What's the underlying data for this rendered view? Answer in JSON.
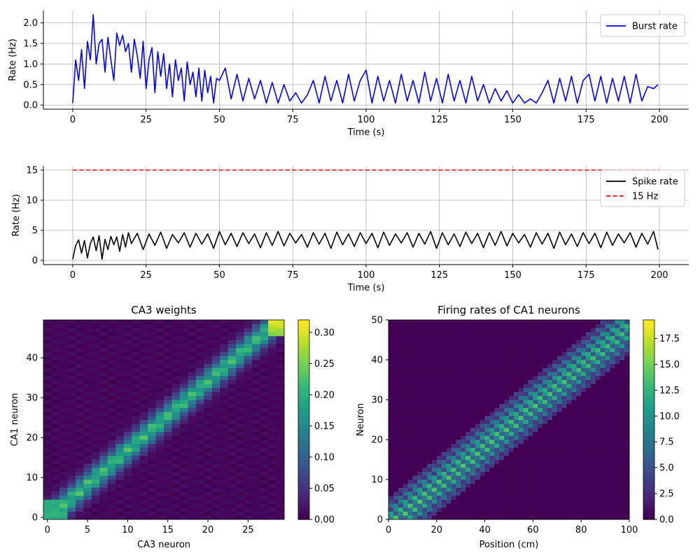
{
  "chart_data": [
    {
      "type": "line",
      "xlabel": "Time (s)",
      "ylabel": "Rate (Hz)",
      "xlim": [
        -10,
        210
      ],
      "ylim": [
        -0.1,
        2.3
      ],
      "xticks": [
        "0",
        "25",
        "50",
        "75",
        "100",
        "125",
        "150",
        "175",
        "200"
      ],
      "yticks": [
        "0.0",
        "0.5",
        "1.0",
        "1.5",
        "2.0"
      ],
      "grid": true,
      "legend_position": "top-right",
      "series": [
        {
          "name": "Burst rate",
          "color": "#0000ff",
          "x": [
            0,
            1,
            2,
            3,
            4,
            5,
            6,
            7,
            8,
            9,
            10,
            11,
            12,
            13,
            14,
            15,
            16,
            17,
            18,
            19,
            20,
            21,
            22,
            23,
            24,
            25,
            26,
            27,
            28,
            29,
            30,
            31,
            32,
            33,
            34,
            35,
            36,
            37,
            38,
            39,
            40,
            41,
            42,
            43,
            44,
            45,
            46,
            47,
            48,
            49,
            50,
            52,
            54,
            56,
            58,
            60,
            62,
            64,
            66,
            68,
            70,
            72,
            74,
            76,
            78,
            80,
            82,
            84,
            86,
            88,
            90,
            92,
            94,
            96,
            98,
            100,
            102,
            104,
            106,
            108,
            110,
            112,
            114,
            116,
            118,
            120,
            122,
            124,
            126,
            128,
            130,
            132,
            134,
            136,
            138,
            140,
            142,
            144,
            146,
            148,
            150,
            152,
            154,
            156,
            158,
            160,
            162,
            164,
            166,
            168,
            170,
            172,
            174,
            176,
            178,
            180,
            182,
            184,
            186,
            188,
            190,
            192,
            194,
            196,
            198,
            199.5
          ],
          "y": [
            0.05,
            1.1,
            0.6,
            1.35,
            0.4,
            1.55,
            1.1,
            2.2,
            1.0,
            1.5,
            1.6,
            0.8,
            1.65,
            1.1,
            0.6,
            1.75,
            1.45,
            1.7,
            1.3,
            1.5,
            0.8,
            1.6,
            1.2,
            0.65,
            1.55,
            0.4,
            1.1,
            1.4,
            0.3,
            1.3,
            0.7,
            1.25,
            0.4,
            1.0,
            0.2,
            1.1,
            0.6,
            0.9,
            0.1,
            1.05,
            0.5,
            0.8,
            0.2,
            0.9,
            0.1,
            0.85,
            0.3,
            0.7,
            0.05,
            0.65,
            0.6,
            0.9,
            0.15,
            0.75,
            0.1,
            0.65,
            0.15,
            0.6,
            0.05,
            0.55,
            0.05,
            0.5,
            0.1,
            0.3,
            0.05,
            0.25,
            0.6,
            0.05,
            0.7,
            0.1,
            0.6,
            0.05,
            0.75,
            0.1,
            0.6,
            0.85,
            0.05,
            0.7,
            0.1,
            0.6,
            0.05,
            0.75,
            0.1,
            0.6,
            0.05,
            0.8,
            0.1,
            0.65,
            0.05,
            0.75,
            0.1,
            0.6,
            0.05,
            0.7,
            0.1,
            0.5,
            0.05,
            0.4,
            0.1,
            0.35,
            0.05,
            0.25,
            0.05,
            0.15,
            0.05,
            0.3,
            0.6,
            0.05,
            0.65,
            0.1,
            0.7,
            0.05,
            0.6,
            0.75,
            0.1,
            0.7,
            0.05,
            0.65,
            0.1,
            0.7,
            0.05,
            0.75,
            0.1,
            0.45,
            0.4,
            0.5
          ]
        }
      ]
    },
    {
      "type": "line",
      "xlabel": "Time (s)",
      "ylabel": "Rate (Hz)",
      "xlim": [
        -10,
        210
      ],
      "ylim": [
        -0.7,
        15.7
      ],
      "xticks": [
        "0",
        "25",
        "50",
        "75",
        "100",
        "125",
        "150",
        "175",
        "200"
      ],
      "yticks": [
        "0",
        "5",
        "10",
        "15"
      ],
      "grid": true,
      "legend_position": "top-right",
      "series": [
        {
          "name": "Spike rate",
          "color": "#000000",
          "x": [
            0,
            1,
            2,
            3,
            4,
            5,
            6,
            7,
            8,
            9,
            10,
            11,
            12,
            13,
            14,
            15,
            16,
            17,
            18,
            19,
            20,
            22,
            24,
            26,
            28,
            30,
            32,
            34,
            36,
            38,
            40,
            42,
            44,
            46,
            48,
            50,
            52,
            54,
            56,
            58,
            60,
            62,
            64,
            66,
            68,
            70,
            72,
            74,
            76,
            78,
            80,
            82,
            84,
            86,
            88,
            90,
            92,
            94,
            96,
            98,
            100,
            102,
            104,
            106,
            108,
            110,
            112,
            114,
            116,
            118,
            120,
            122,
            124,
            126,
            128,
            130,
            132,
            134,
            136,
            138,
            140,
            142,
            144,
            146,
            148,
            150,
            152,
            154,
            156,
            158,
            160,
            162,
            164,
            166,
            168,
            170,
            172,
            174,
            176,
            178,
            180,
            182,
            184,
            186,
            188,
            190,
            192,
            194,
            196,
            198,
            199.5
          ],
          "y": [
            0.2,
            2.5,
            3.4,
            1.2,
            3.3,
            0.4,
            2.8,
            3.9,
            1.6,
            4.1,
            0.2,
            3.5,
            1.8,
            4.0,
            2.6,
            3.9,
            1.5,
            4.3,
            2.2,
            4.6,
            2.8,
            4.5,
            1.8,
            4.4,
            2.5,
            4.7,
            2.0,
            4.3,
            2.9,
            4.6,
            2.2,
            4.5,
            2.7,
            4.4,
            2.0,
            4.8,
            2.6,
            4.5,
            2.3,
            4.6,
            2.8,
            4.4,
            2.1,
            4.6,
            2.5,
            4.8,
            2.4,
            4.5,
            2.9,
            4.3,
            2.2,
            4.6,
            2.7,
            4.5,
            2.0,
            4.7,
            2.6,
            4.4,
            2.3,
            4.6,
            2.8,
            4.5,
            2.1,
            4.7,
            2.5,
            4.4,
            2.9,
            4.6,
            2.2,
            4.5,
            2.7,
            4.8,
            2.0,
            4.6,
            2.6,
            4.4,
            2.3,
            4.7,
            2.8,
            4.5,
            2.1,
            4.6,
            2.5,
            4.8,
            2.4,
            4.5,
            2.9,
            4.3,
            2.2,
            4.6,
            2.7,
            4.5,
            2.0,
            4.7,
            2.6,
            4.4,
            2.3,
            4.6,
            2.8,
            4.5,
            2.1,
            4.7,
            2.5,
            4.4,
            2.9,
            4.6,
            2.2,
            4.5,
            2.7,
            4.8,
            1.8
          ]
        },
        {
          "name": "15 Hz",
          "color": "#ff0000",
          "x": [
            0,
            200
          ],
          "y": [
            15,
            15
          ]
        }
      ]
    },
    {
      "type": "heatmap",
      "title": "CA3 weights",
      "xlabel": "CA3 neuron",
      "ylabel": "CA1 neuron",
      "n_cols": 30,
      "n_rows": 50,
      "xticks": [
        "0",
        "5",
        "10",
        "15",
        "20",
        "25"
      ],
      "yticks": [
        "0",
        "10",
        "20",
        "30",
        "40"
      ],
      "colorbar_ticks": [
        "0.00",
        "0.05",
        "0.10",
        "0.15",
        "0.20",
        "0.25",
        "0.30"
      ],
      "vmin": 0,
      "vmax": 0.32,
      "colormap": "viridis",
      "structure": "diagonal band: CA1 neuron i weighted most strongly on CA3 neuron ~0.58*i, peak ~0.32 near top-right corner"
    },
    {
      "type": "heatmap",
      "title": "Firing rates of CA1 neurons",
      "xlabel": "Position (cm)",
      "ylabel": "Neuron",
      "xlim": [
        0,
        100
      ],
      "ylim": [
        0,
        50
      ],
      "xticks": [
        "0",
        "20",
        "40",
        "60",
        "80",
        "100"
      ],
      "yticks": [
        "0",
        "10",
        "20",
        "30",
        "40",
        "50"
      ],
      "colorbar_ticks": [
        "0.0",
        "2.5",
        "5.0",
        "7.5",
        "10.0",
        "12.5",
        "15.0",
        "17.5"
      ],
      "vmin": 0,
      "vmax": 19.3,
      "colormap": "viridis",
      "structure": "diagonal band: neuron n fires around position ~2*n cm, peak ~19 Hz"
    }
  ]
}
